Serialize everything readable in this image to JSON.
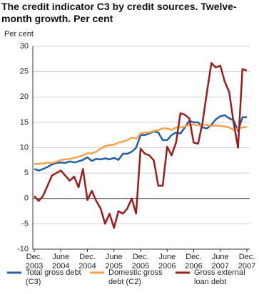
{
  "chart_data": {
    "type": "line",
    "title": "The credit indicator C3 by credit sources. Twelve-month growth. Per cent",
    "y_label": "Per cent",
    "categories": [
      "Dec. 2003",
      null,
      null,
      null,
      null,
      null,
      "June 2004",
      null,
      null,
      null,
      null,
      null,
      "Dec. 2004",
      null,
      null,
      null,
      null,
      null,
      "June 2005",
      null,
      null,
      null,
      null,
      null,
      "Dec. 2005",
      null,
      null,
      null,
      null,
      null,
      "June 2006",
      null,
      null,
      null,
      null,
      null,
      "Dec. 2006",
      null,
      null,
      null,
      null,
      null,
      "June 2007",
      null,
      null,
      null,
      null,
      null,
      "Dec. 2007"
    ],
    "series": [
      {
        "name": "Total gross debt (C3)",
        "color": "#1f5fa8",
        "values": [
          5.8,
          5.5,
          5.8,
          6.2,
          6.7,
          7.0,
          7.1,
          7.0,
          7.3,
          7.1,
          7.3,
          7.6,
          8.1,
          7.4,
          7.8,
          7.7,
          7.9,
          7.7,
          8.0,
          7.6,
          8.8,
          8.8,
          9.2,
          10.0,
          12.5,
          12.5,
          12.8,
          13.2,
          13.0,
          11.5,
          11.5,
          12.5,
          13.0,
          12.8,
          14.0,
          15.3,
          15.0,
          15.0,
          14.0,
          13.8,
          14.5,
          15.6,
          16.2,
          16.4,
          15.8,
          15.4,
          13.3,
          16.0,
          16.0
        ]
      },
      {
        "name": "Domestic gross debt (C2)",
        "color": "#f7a24b",
        "values": [
          6.8,
          6.8,
          6.9,
          7.0,
          7.0,
          7.2,
          7.6,
          7.7,
          7.8,
          8.0,
          8.2,
          8.5,
          8.9,
          8.9,
          9.2,
          9.8,
          10.3,
          10.5,
          10.6,
          11.0,
          11.2,
          11.5,
          12.0,
          11.8,
          12.8,
          13.0,
          13.0,
          13.3,
          13.5,
          13.8,
          13.8,
          13.5,
          14.0,
          14.0,
          14.2,
          14.5,
          14.6,
          14.4,
          14.5,
          14.5,
          14.3,
          14.4,
          14.3,
          14.2,
          14.0,
          13.5,
          13.8,
          14.0,
          14.1
        ]
      },
      {
        "name": "Gross external loan debt",
        "color": "#9e1b1b",
        "values": [
          0.5,
          -0.5,
          0.5,
          2.5,
          4.5,
          5.0,
          5.5,
          4.5,
          3.5,
          4.3,
          2.2,
          5.8,
          -0.3,
          1.5,
          -0.5,
          -2.0,
          -5.0,
          -3.0,
          -5.8,
          -2.5,
          -3.0,
          -2.0,
          0.0,
          -3.0,
          9.8,
          8.8,
          8.5,
          7.5,
          2.5,
          2.5,
          10.2,
          8.5,
          11.0,
          16.8,
          16.5,
          15.8,
          11.0,
          10.8,
          15.0,
          21.0,
          26.7,
          25.8,
          26.2,
          23.0,
          21.0,
          15.0,
          10.0,
          25.5,
          25.2
        ]
      }
    ],
    "ylim": [
      -10,
      30
    ],
    "yticks": [
      -10,
      -5,
      0,
      5,
      10,
      15,
      20,
      25,
      30
    ],
    "grid": true
  }
}
